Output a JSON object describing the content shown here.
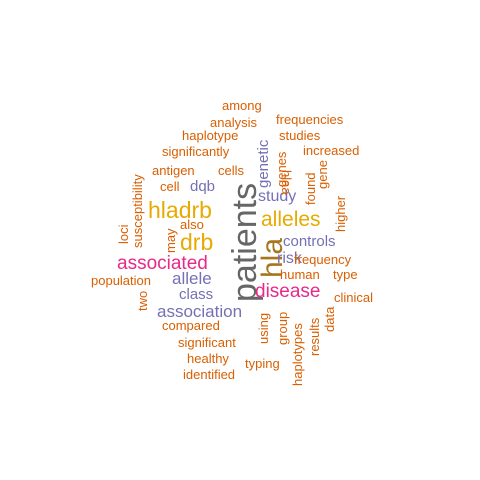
{
  "colors": {
    "orange": "#d95f02",
    "purple": "#7570b3",
    "magenta": "#e7298a",
    "gold": "#e6ab02",
    "olive": "#a6761d",
    "gray": "#666666"
  },
  "words": [
    {
      "text": "patients",
      "color": "#666666"
    },
    {
      "text": "hla",
      "color": "#a6761d"
    },
    {
      "text": "hladrb",
      "color": "#e6ab02"
    },
    {
      "text": "drb",
      "color": "#e6ab02"
    },
    {
      "text": "alleles",
      "color": "#e6ab02"
    },
    {
      "text": "associated",
      "color": "#e7298a"
    },
    {
      "text": "disease",
      "color": "#e7298a"
    },
    {
      "text": "association",
      "color": "#7570b3"
    },
    {
      "text": "allele",
      "color": "#7570b3"
    },
    {
      "text": "class",
      "color": "#7570b3"
    },
    {
      "text": "study",
      "color": "#7570b3"
    },
    {
      "text": "genetic",
      "color": "#7570b3"
    },
    {
      "text": "controls",
      "color": "#7570b3"
    },
    {
      "text": "risk",
      "color": "#7570b3"
    },
    {
      "text": "dqb",
      "color": "#7570b3"
    },
    {
      "text": "among",
      "color": "#d95f02"
    },
    {
      "text": "analysis",
      "color": "#d95f02"
    },
    {
      "text": "frequencies",
      "color": "#d95f02"
    },
    {
      "text": "haplotype",
      "color": "#d95f02"
    },
    {
      "text": "studies",
      "color": "#d95f02"
    },
    {
      "text": "hlaa",
      "color": "#d95f02"
    },
    {
      "text": "significantly",
      "color": "#d95f02"
    },
    {
      "text": "increased",
      "color": "#d95f02"
    },
    {
      "text": "genes",
      "color": "#d95f02"
    },
    {
      "text": "antigen",
      "color": "#d95f02"
    },
    {
      "text": "cells",
      "color": "#d95f02"
    },
    {
      "text": "susceptibility",
      "color": "#d95f02"
    },
    {
      "text": "gene",
      "color": "#d95f02"
    },
    {
      "text": "found",
      "color": "#d95f02"
    },
    {
      "text": "cell",
      "color": "#d95f02"
    },
    {
      "text": "higher",
      "color": "#d95f02"
    },
    {
      "text": "also",
      "color": "#d95f02"
    },
    {
      "text": "loci",
      "color": "#d95f02"
    },
    {
      "text": "may",
      "color": "#d95f02"
    },
    {
      "text": "frequency",
      "color": "#d95f02"
    },
    {
      "text": "human",
      "color": "#d95f02"
    },
    {
      "text": "type",
      "color": "#d95f02"
    },
    {
      "text": "population",
      "color": "#d95f02"
    },
    {
      "text": "two",
      "color": "#d95f02"
    },
    {
      "text": "clinical",
      "color": "#d95f02"
    },
    {
      "text": "using",
      "color": "#d95f02"
    },
    {
      "text": "group",
      "color": "#d95f02"
    },
    {
      "text": "results",
      "color": "#d95f02"
    },
    {
      "text": "data",
      "color": "#d95f02"
    },
    {
      "text": "compared",
      "color": "#d95f02"
    },
    {
      "text": "significant",
      "color": "#d95f02"
    },
    {
      "text": "haplotypes",
      "color": "#d95f02"
    },
    {
      "text": "healthy",
      "color": "#d95f02"
    },
    {
      "text": "typing",
      "color": "#d95f02"
    },
    {
      "text": "identified",
      "color": "#d95f02"
    }
  ]
}
